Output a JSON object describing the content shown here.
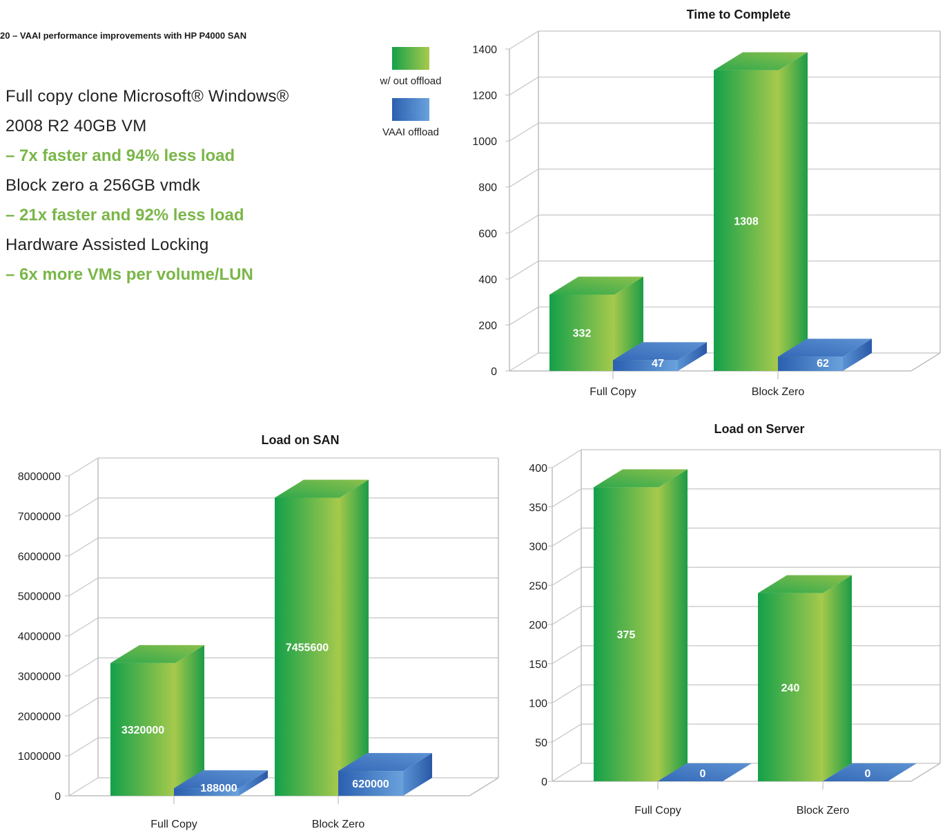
{
  "figure": {
    "title": "20 – VAAI performance improvements with HP P4000 SAN"
  },
  "bullets": [
    {
      "text": "Full copy clone Microsoft® Windows®",
      "style": "plain"
    },
    {
      "text": "2008 R2 40GB VM",
      "style": "plain"
    },
    {
      "text": "– 7x faster and 94% less load",
      "style": "hl"
    },
    {
      "text": "Block zero a 256GB vmdk",
      "style": "plain"
    },
    {
      "text": "– 21x faster and 92% less load",
      "style": "hl"
    },
    {
      "text": "Hardware Assisted Locking",
      "style": "plain"
    },
    {
      "text": "– 6x more VMs per volume/LUN",
      "style": "hl"
    }
  ],
  "legend": {
    "items": [
      {
        "label": "w/ out offload",
        "color": "green"
      },
      {
        "label": "VAAI offload",
        "color": "blue"
      }
    ]
  },
  "colors": {
    "green_dark": "#1aa24a",
    "green_light": "#a4c94a",
    "blue_dark": "#2d62b2",
    "blue_light": "#5d95d6",
    "accent_text": "#7ab648"
  },
  "chart_data": [
    {
      "type": "bar",
      "title": "Time to Complete",
      "categories": [
        "Full Copy",
        "Block Zero"
      ],
      "series": [
        {
          "name": "w/ out offload",
          "values": [
            332,
            1308
          ]
        },
        {
          "name": "VAAI offload",
          "values": [
            47,
            62
          ]
        }
      ],
      "data_labels": [
        [
          "332",
          "1308"
        ],
        [
          "47",
          "62"
        ]
      ],
      "ylim": [
        0,
        1400
      ],
      "yticks": [
        0,
        200,
        400,
        600,
        800,
        1000,
        1200,
        1400
      ],
      "ytick_labels": [
        "0",
        "200",
        "400",
        "600",
        "800",
        "1000",
        "1200",
        "1400"
      ],
      "grid": true,
      "style": "3d"
    },
    {
      "type": "bar",
      "title": "Load on SAN",
      "categories": [
        "Full Copy",
        "Block Zero"
      ],
      "series": [
        {
          "name": "w/ out offload",
          "values": [
            3320000,
            7455600
          ]
        },
        {
          "name": "VAAI offload",
          "values": [
            188000,
            620000
          ]
        }
      ],
      "data_labels": [
        [
          "3320000",
          "7455600"
        ],
        [
          "188000",
          "620000"
        ]
      ],
      "ylim": [
        0,
        8000000
      ],
      "yticks": [
        0,
        1000000,
        2000000,
        3000000,
        4000000,
        5000000,
        6000000,
        7000000,
        8000000
      ],
      "ytick_labels": [
        "0",
        "1000000",
        "2000000",
        "3000000",
        "4000000",
        "5000000",
        "6000000",
        "7000000",
        "8000000"
      ],
      "grid": true,
      "style": "3d"
    },
    {
      "type": "bar",
      "title": "Load on Server",
      "categories": [
        "Full Copy",
        "Block Zero"
      ],
      "series": [
        {
          "name": "w/ out offload",
          "values": [
            375,
            240
          ]
        },
        {
          "name": "VAAI offload",
          "values": [
            0,
            0
          ]
        }
      ],
      "data_labels": [
        [
          "375",
          "240"
        ],
        [
          "0",
          "0"
        ]
      ],
      "ylim": [
        0,
        400
      ],
      "yticks": [
        0,
        50,
        100,
        150,
        200,
        250,
        300,
        350,
        400
      ],
      "ytick_labels": [
        "0",
        "50",
        "100",
        "150",
        "200",
        "250",
        "300",
        "350",
        "400"
      ],
      "grid": true,
      "style": "3d"
    }
  ]
}
